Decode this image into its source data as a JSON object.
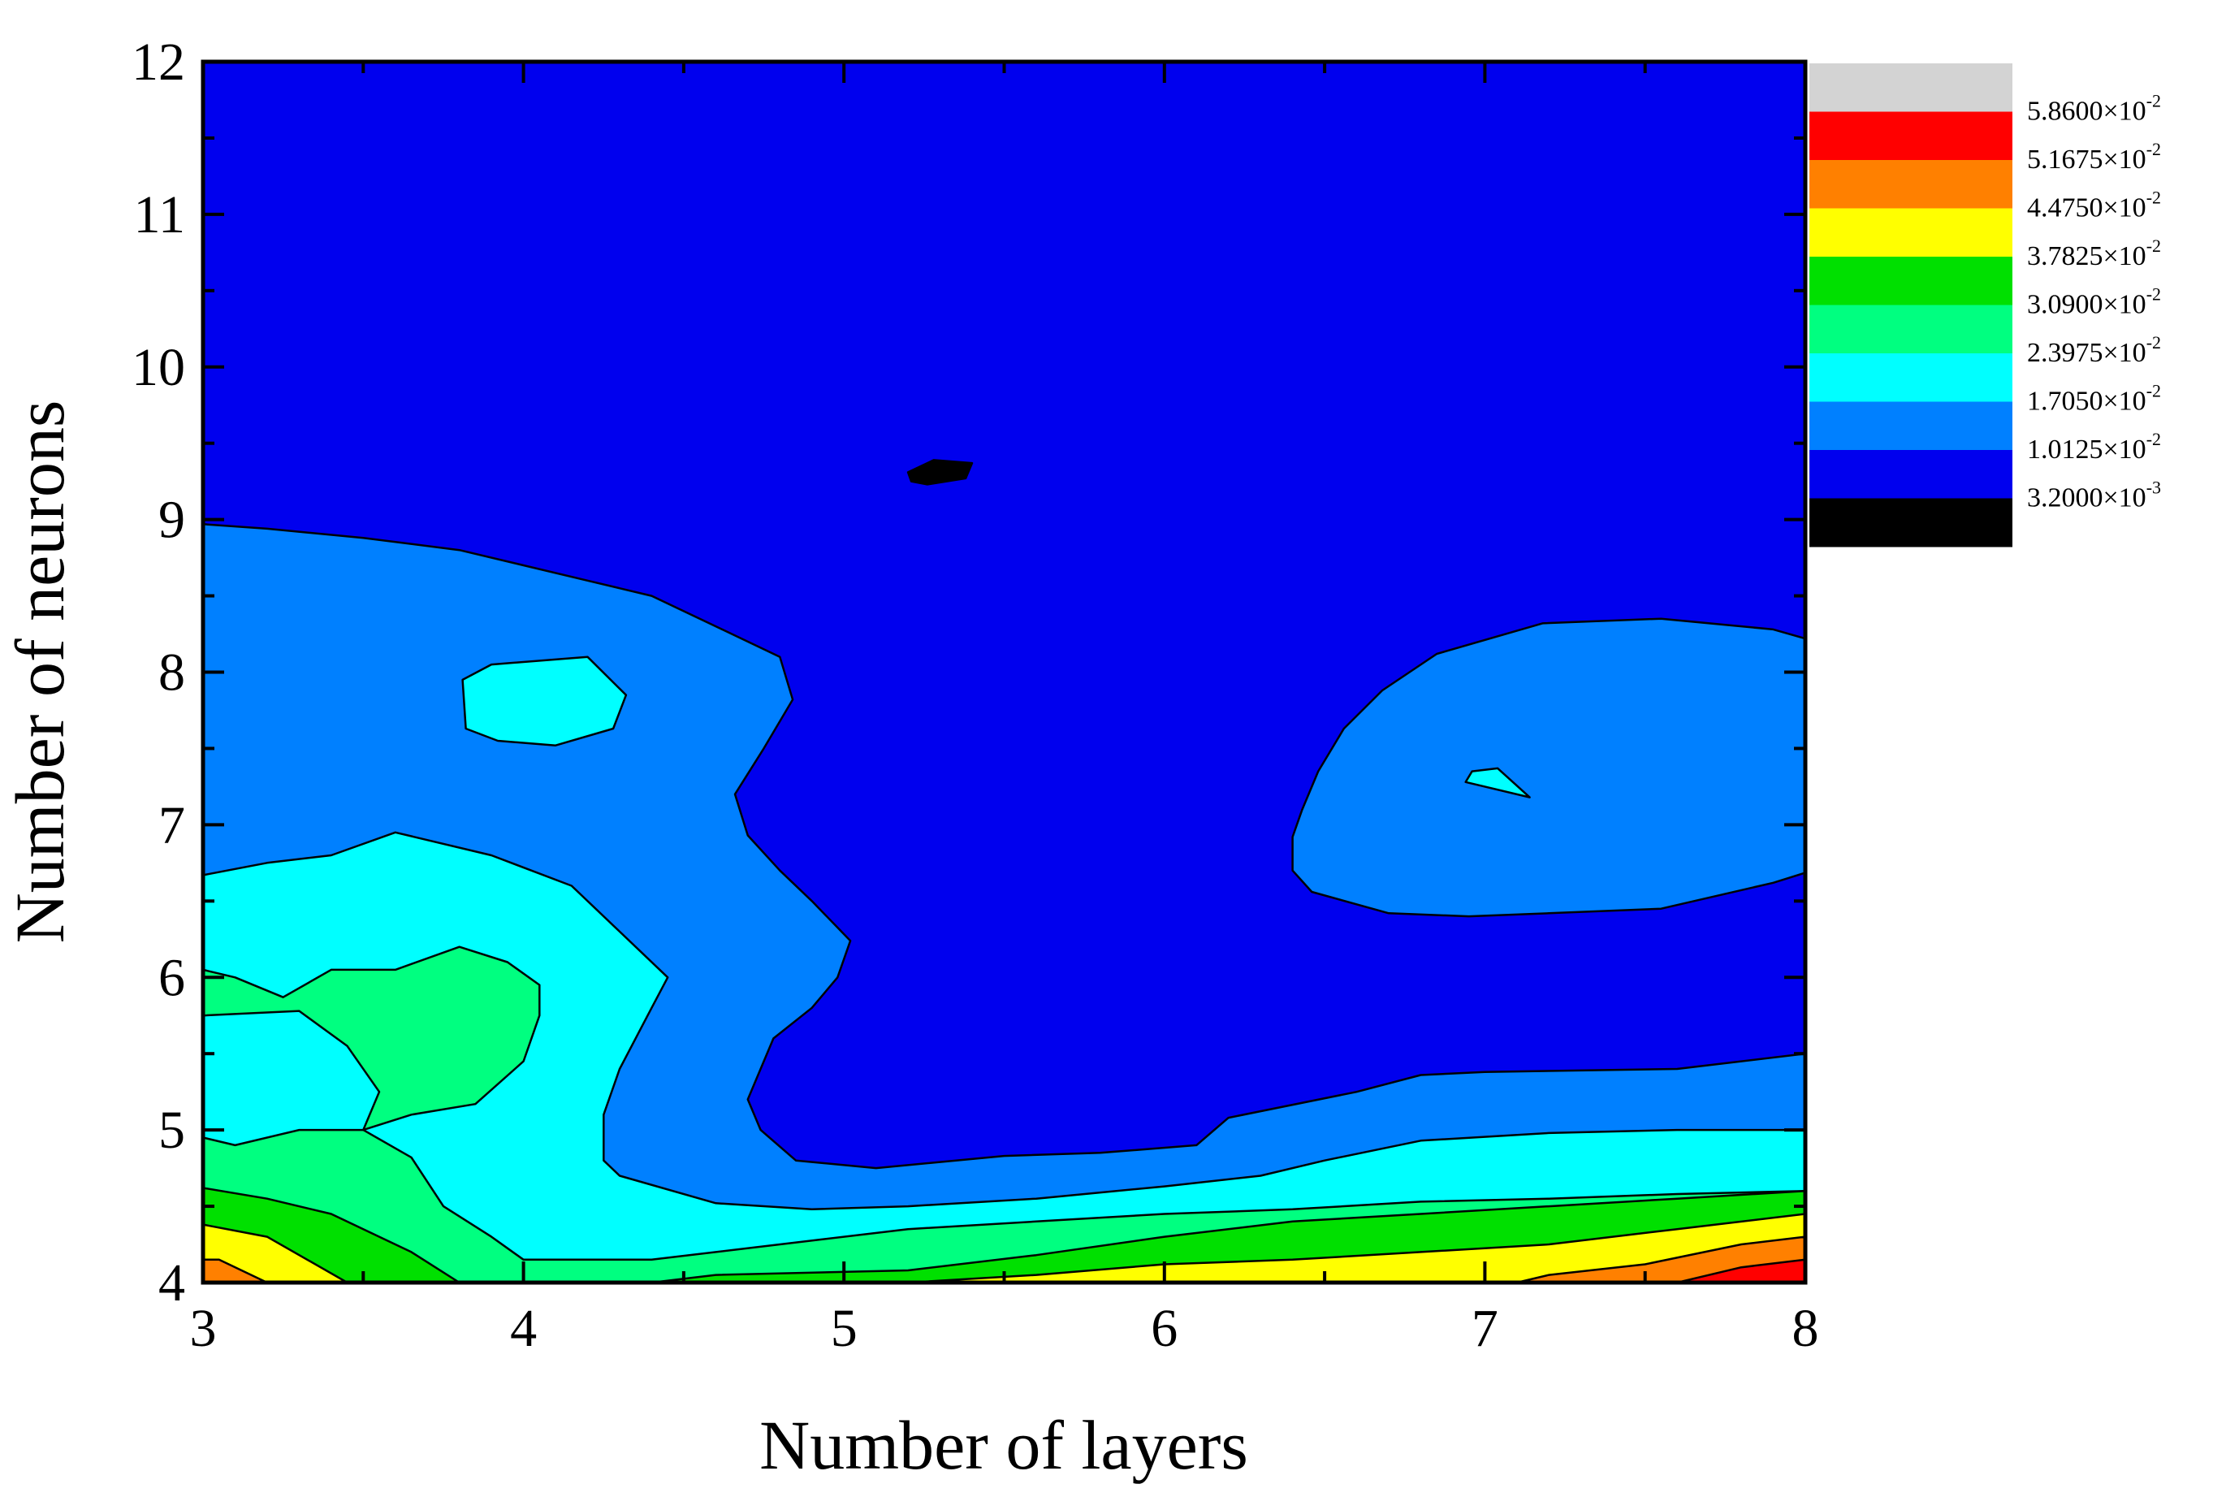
{
  "chart_data": {
    "type": "contour",
    "title": "",
    "xlabel": "Number of layers",
    "ylabel": "Number of neurons",
    "xlim": [
      3,
      8
    ],
    "ylim": [
      4,
      12
    ],
    "x_ticks": [
      3,
      4,
      5,
      6,
      7,
      8
    ],
    "y_ticks": [
      4,
      5,
      6,
      7,
      8,
      9,
      10,
      11,
      12
    ],
    "x_tick_labels": [
      "3",
      "4",
      "5",
      "6",
      "7",
      "8"
    ],
    "y_tick_labels": [
      "4",
      "5",
      "6",
      "7",
      "8",
      "9",
      "10",
      "11",
      "12"
    ],
    "grid": false,
    "legend_position": "right",
    "levels": [
      {
        "mantissa": "5.8600",
        "exponent": "-2",
        "color": "#d3d3d3"
      },
      {
        "mantissa": "5.1675",
        "exponent": "-2",
        "color": "#ff0000"
      },
      {
        "mantissa": "4.4750",
        "exponent": "-2",
        "color": "#ff8000"
      },
      {
        "mantissa": "3.7825",
        "exponent": "-2",
        "color": "#ffff00"
      },
      {
        "mantissa": "3.0900",
        "exponent": "-2",
        "color": "#00e000"
      },
      {
        "mantissa": "2.3975",
        "exponent": "-2",
        "color": "#00ff80"
      },
      {
        "mantissa": "1.7050",
        "exponent": "-2",
        "color": "#00ffff"
      },
      {
        "mantissa": "1.0125",
        "exponent": "-2",
        "color": "#0080ff"
      },
      {
        "mantissa": "3.2000",
        "exponent": "-3",
        "color": "#0000ee"
      },
      {
        "mantissa": "",
        "exponent": "",
        "color": "#000000"
      }
    ],
    "regions": [
      {
        "color": "#0000ee",
        "poly": [
          [
            3,
            4
          ],
          [
            8,
            4
          ],
          [
            8,
            12
          ],
          [
            3,
            12
          ]
        ]
      },
      {
        "color": "#000000",
        "poly": [
          [
            5.2,
            9.31
          ],
          [
            5.28,
            9.39
          ],
          [
            5.4,
            9.37
          ],
          [
            5.38,
            9.27
          ],
          [
            5.26,
            9.23
          ],
          [
            5.21,
            9.25
          ]
        ]
      },
      {
        "color": "#0080ff",
        "poly": [
          [
            3,
            4
          ],
          [
            8,
            4
          ],
          [
            8,
            5.5
          ],
          [
            7.6,
            5.4
          ],
          [
            7.0,
            5.38
          ],
          [
            6.8,
            5.36
          ],
          [
            6.6,
            5.25
          ],
          [
            6.2,
            5.08
          ],
          [
            6.1,
            4.9
          ],
          [
            5.8,
            4.85
          ],
          [
            5.5,
            4.83
          ],
          [
            5.1,
            4.75
          ],
          [
            4.85,
            4.8
          ],
          [
            4.74,
            5.0
          ],
          [
            4.7,
            5.2
          ],
          [
            4.78,
            5.6
          ],
          [
            4.9,
            5.8
          ],
          [
            4.98,
            6.0
          ],
          [
            5.02,
            6.24
          ],
          [
            4.9,
            6.5
          ],
          [
            4.8,
            6.7
          ],
          [
            4.7,
            6.93
          ],
          [
            4.66,
            7.2
          ],
          [
            4.75,
            7.5
          ],
          [
            4.84,
            7.82
          ],
          [
            4.8,
            8.1
          ],
          [
            4.4,
            8.5
          ],
          [
            4.2,
            8.6
          ],
          [
            4.0,
            8.7
          ],
          [
            3.8,
            8.8
          ],
          [
            3.5,
            8.88
          ],
          [
            3.2,
            8.94
          ],
          [
            3,
            8.97
          ]
        ]
      },
      {
        "color": "#0080ff",
        "poly": [
          [
            6.48,
            7.35
          ],
          [
            6.56,
            7.63
          ],
          [
            6.68,
            7.88
          ],
          [
            6.85,
            8.12
          ],
          [
            7.18,
            8.32
          ],
          [
            7.55,
            8.35
          ],
          [
            7.9,
            8.28
          ],
          [
            8.2,
            8.1
          ],
          [
            8.4,
            7.82
          ],
          [
            8.5,
            7.5
          ],
          [
            8.4,
            7.1
          ],
          [
            8.22,
            6.83
          ],
          [
            7.9,
            6.62
          ],
          [
            7.55,
            6.45
          ],
          [
            7.2,
            6.42
          ],
          [
            6.95,
            6.4
          ],
          [
            6.7,
            6.42
          ],
          [
            6.46,
            6.56
          ],
          [
            6.4,
            6.7
          ],
          [
            6.4,
            6.92
          ],
          [
            6.43,
            7.1
          ]
        ]
      },
      {
        "color": "#00ffff",
        "poly": [
          [
            3.82,
            7.63
          ],
          [
            3.81,
            7.95
          ],
          [
            3.9,
            8.05
          ],
          [
            4.2,
            8.1
          ],
          [
            4.32,
            7.85
          ],
          [
            4.28,
            7.63
          ],
          [
            4.1,
            7.52
          ],
          [
            3.92,
            7.55
          ]
        ]
      },
      {
        "color": "#00ffff",
        "poly": [
          [
            6.94,
            7.28
          ],
          [
            6.96,
            7.35
          ],
          [
            7.04,
            7.37
          ],
          [
            7.14,
            7.18
          ]
        ]
      },
      {
        "color": "#00ffff",
        "poly": [
          [
            3,
            4
          ],
          [
            8,
            4
          ],
          [
            8,
            5.0
          ],
          [
            7.6,
            5.0
          ],
          [
            7.2,
            4.98
          ],
          [
            6.8,
            4.93
          ],
          [
            6.5,
            4.8
          ],
          [
            6.3,
            4.7
          ],
          [
            6.0,
            4.63
          ],
          [
            5.6,
            4.55
          ],
          [
            5.2,
            4.5
          ],
          [
            4.9,
            4.48
          ],
          [
            4.6,
            4.52
          ],
          [
            4.3,
            4.7
          ],
          [
            4.25,
            4.8
          ],
          [
            4.25,
            5.1
          ],
          [
            4.3,
            5.4
          ],
          [
            4.4,
            5.8
          ],
          [
            4.45,
            6.0
          ],
          [
            4.3,
            6.3
          ],
          [
            4.15,
            6.6
          ],
          [
            3.9,
            6.8
          ],
          [
            3.6,
            6.95
          ],
          [
            3.4,
            6.8
          ],
          [
            3.2,
            6.75
          ],
          [
            3,
            6.67
          ]
        ]
      },
      {
        "color": "#00ff80",
        "poly": [
          [
            3,
            4
          ],
          [
            8,
            4
          ],
          [
            8,
            4.6
          ],
          [
            7.6,
            4.58
          ],
          [
            7.2,
            4.55
          ],
          [
            6.8,
            4.53
          ],
          [
            6.4,
            4.48
          ],
          [
            6.0,
            4.45
          ],
          [
            5.6,
            4.4
          ],
          [
            5.2,
            4.35
          ],
          [
            4.8,
            4.25
          ],
          [
            4.4,
            4.15
          ],
          [
            4.0,
            4.15
          ],
          [
            3.9,
            4.3
          ],
          [
            3.75,
            4.5
          ],
          [
            3.65,
            4.82
          ],
          [
            3.5,
            5.0
          ],
          [
            3.3,
            5.0
          ],
          [
            3.1,
            4.9
          ],
          [
            3,
            4.95
          ]
        ]
      },
      {
        "color": "#00ff80",
        "poly": [
          [
            3,
            5.75
          ],
          [
            3.3,
            5.78
          ],
          [
            3.45,
            5.55
          ],
          [
            3.55,
            5.25
          ],
          [
            3.5,
            5.0
          ],
          [
            3.65,
            5.1
          ],
          [
            3.85,
            5.17
          ],
          [
            4.0,
            5.45
          ],
          [
            4.05,
            5.75
          ],
          [
            4.05,
            5.95
          ],
          [
            3.95,
            6.1
          ],
          [
            3.8,
            6.2
          ],
          [
            3.6,
            6.05
          ],
          [
            3.4,
            6.05
          ],
          [
            3.25,
            5.87
          ],
          [
            3.1,
            6.0
          ],
          [
            3,
            6.05
          ]
        ]
      },
      {
        "color": "#00e000",
        "poly": [
          [
            3,
            4
          ],
          [
            8,
            4
          ],
          [
            8,
            4.6
          ],
          [
            7.6,
            4.55
          ],
          [
            7.2,
            4.5
          ],
          [
            6.8,
            4.45
          ],
          [
            6.4,
            4.4
          ],
          [
            6.0,
            4.3
          ],
          [
            5.6,
            4.18
          ],
          [
            5.2,
            4.08
          ],
          [
            4.6,
            4.05
          ],
          [
            4.4,
            4.0
          ],
          [
            3.8,
            4.0
          ],
          [
            3.65,
            4.2
          ],
          [
            3.4,
            4.45
          ],
          [
            3.2,
            4.55
          ],
          [
            3,
            4.62
          ]
        ]
      },
      {
        "color": "#ffff00",
        "poly": [
          [
            3,
            4
          ],
          [
            8,
            4
          ],
          [
            8,
            4.45
          ],
          [
            7.6,
            4.35
          ],
          [
            7.2,
            4.25
          ],
          [
            6.8,
            4.2
          ],
          [
            6.4,
            4.15
          ],
          [
            6.0,
            4.12
          ],
          [
            5.6,
            4.05
          ],
          [
            5.2,
            4.0
          ],
          [
            3.45,
            4.0
          ],
          [
            3.2,
            4.3
          ],
          [
            3,
            4.38
          ]
        ]
      },
      {
        "color": "#ff8000",
        "poly": [
          [
            3,
            4
          ],
          [
            3.2,
            4.0
          ],
          [
            3.05,
            4.15
          ],
          [
            3,
            4.15
          ]
        ]
      },
      {
        "color": "#ff8000",
        "poly": [
          [
            7.1,
            4.0
          ],
          [
            8,
            4
          ],
          [
            8,
            4.3
          ],
          [
            7.8,
            4.25
          ],
          [
            7.5,
            4.12
          ],
          [
            7.2,
            4.05
          ]
        ]
      },
      {
        "color": "#ff0000",
        "poly": [
          [
            7.6,
            4.0
          ],
          [
            8,
            4
          ],
          [
            8,
            4.15
          ],
          [
            7.8,
            4.1
          ]
        ]
      }
    ]
  }
}
